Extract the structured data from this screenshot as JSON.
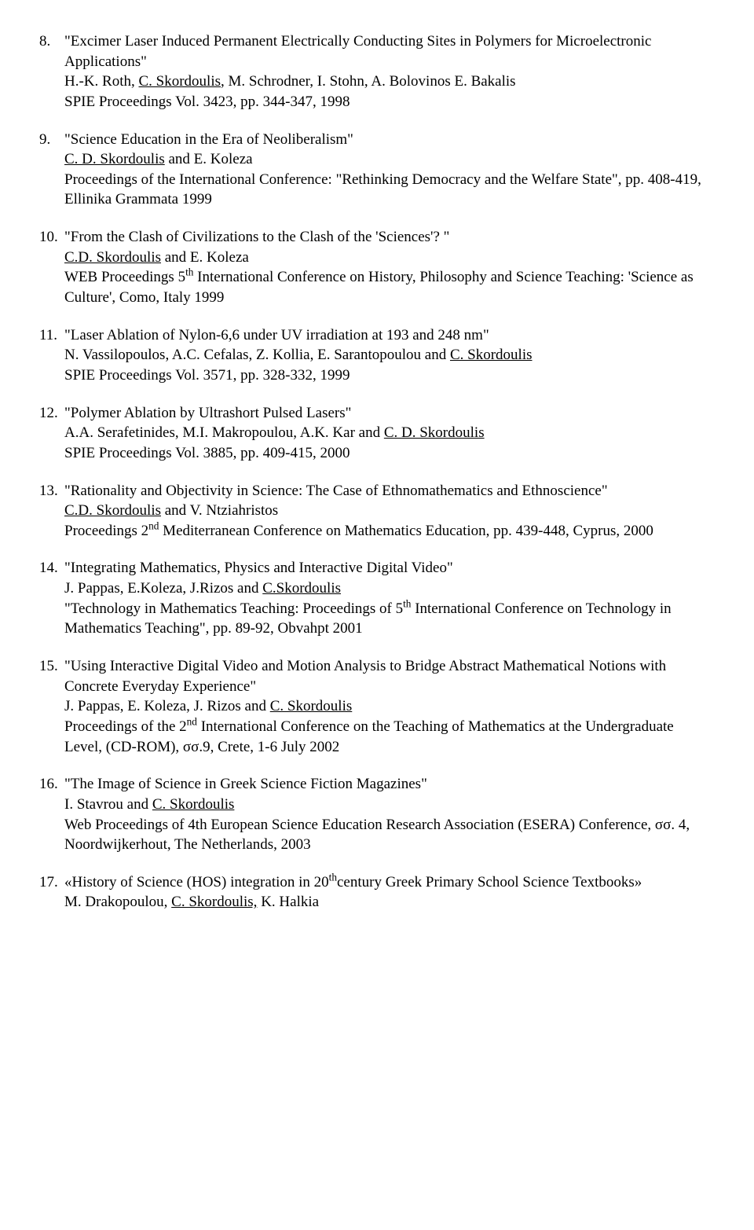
{
  "entries": [
    {
      "num": "8.",
      "title_pre": "\"",
      "title": "Excimer Laser Induced Permanent Electrically Conducting Sites in Polymers for Microelectronic Applications",
      "title_post": "\"",
      "authors_pre": "H.-K. Roth, ",
      "authors_u": "C. Skordoulis",
      "authors_post": ", M. Schrodner, I. Stohn, A. Bolovinos E. Bakalis",
      "pub": "SPIE Proceedings Vol. 3423, pp. 344-347, 1998"
    },
    {
      "num": "9.",
      "title_pre": "\"",
      "title": "Science Education in the Era of Neoliberalism",
      "title_post": "\"",
      "authors_u": "C. D. Skordoulis",
      "authors_post": " and E. Koleza",
      "pub": "Proceedings of the International Conference: \"Rethinking Democracy and the Welfare State\", pp. 408-419, Ellinika Grammata 1999"
    },
    {
      "num": "10.",
      "title_pre": "\"",
      "title": "From the Clash of Civilizations to the Clash of the 'Sciences'? ",
      "title_post": "\"",
      "authors_u": "C.D. Skordoulis",
      "authors_post": " and E. Koleza",
      "pub_pre": "WEB Proceedings 5",
      "pub_sup": "th",
      "pub_post": " International Conference on History, Philosophy and Science Teaching: 'Science as Culture', Como, Italy 1999"
    },
    {
      "num": "11.",
      "title_pre": "\"",
      "title": "Laser Ablation of Nylon-6,6 under UV irradiation at 193 and 248 nm",
      "title_post": "\"",
      "authors_pre": "N. Vassilopoulos, A.C. Cefalas, Z. Kollia, E. Sarantopoulou and ",
      "authors_u": "C. Skordoulis",
      "pub": "SPIE Proceedings Vol. 3571, pp. 328-332, 1999"
    },
    {
      "num": "12.",
      "title_pre": "\"",
      "title": "Polymer Ablation by Ultrashort Pulsed Lasers",
      "title_post": "\"",
      "authors_pre": "A.A. Serafetinides, M.I. Makropoulou, A.K. Kar and ",
      "authors_u": "C. D. Skordoulis",
      "pub": "SPIE Proceedings Vol. 3885, pp. 409-415, 2000"
    },
    {
      "num": "13.",
      "title_pre": "\"",
      "title": "Rationality and Objectivity in Science: The Case of Ethnomathematics and Ethnoscience",
      "title_post": "\"",
      "authors_u": "C.D. Skordoulis",
      "authors_post": " and V. Ntziahristos",
      "pub_pre": "Proceedings 2",
      "pub_sup": "nd",
      "pub_post": " Mediterranean Conference on Mathematics Education, pp. 439-448, Cyprus, 2000"
    },
    {
      "num": "14.",
      "title_pre": "\"",
      "title": "Integrating Mathematics, Physics and Interactive Digital Video",
      "title_post": "\"",
      "authors_pre": "J. Pappas, E.Koleza, J.Rizos and ",
      "authors_u": "C.Skordoulis",
      "pub_pre": "\"Technology in Mathematics Teaching: Proceedings of 5",
      "pub_sup": "th",
      "pub_post": " International Conference on Technology in Mathematics Teaching\", pp. 89-92, Obvahpt 2001"
    },
    {
      "num": "15.",
      "title_pre": " \"",
      "title": "Using Interactive Digital Video and Motion Analysis to Bridge Abstract Mathematical Notions with Concrete Everyday Experience",
      "title_post": "\"",
      "authors_pre": "J. Pappas, E. Koleza, J. Rizos and ",
      "authors_u": "C. Skordoulis",
      "pub_pre": "Proceedings of the 2",
      "pub_sup": "nd",
      "pub_post": " International Conference on the Teaching of Mathematics at the Undergraduate Level, (CD-ROM), σσ.9, Crete, 1-6 July 2002"
    },
    {
      "num": "16.",
      "title_pre": " \"",
      "title": "The Image of Science in Greek Science Fiction Magazines",
      "title_post": "\"",
      "authors_pre": "I. Stavrou and ",
      "authors_u": "C. Skordoulis",
      "pub": "Web Proceedings of 4th European Science Education Research Association (ESERA) Conference, σσ. 4, Noordwijkerhout, The Netherlands, 2003"
    },
    {
      "num": "17.",
      "title_pre": "«",
      "title_a": "History of Science (HOS) integration in 20",
      "title_sup": "th",
      "title_b": "century Greek Primary School Science Textbooks",
      "title_post": "»",
      "authors_pre": "M. Drakopoulou, ",
      "authors_u": "C. Skordoulis,",
      "authors_post": " K. Halkia"
    }
  ]
}
